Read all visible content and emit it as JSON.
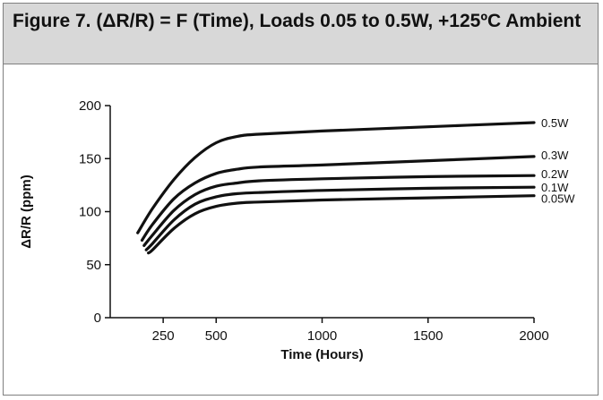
{
  "figure": {
    "title": "Figure 7. (ΔR/R) = F (Time), Loads 0.05 to 0.5W, +125ºC Ambient"
  },
  "chart_data": {
    "type": "line",
    "title": "Figure 7. (ΔR/R) = F (Time), Loads 0.05 to 0.5W, +125ºC Ambient",
    "xlabel": "Time (Hours)",
    "ylabel": "ΔR/R (ppm)",
    "xlim": [
      0,
      2000
    ],
    "ylim": [
      0,
      200
    ],
    "x_ticks": [
      250,
      500,
      1000,
      1500,
      2000
    ],
    "x_tick_labels": [
      "250",
      "500",
      "1000",
      "1500",
      "2000"
    ],
    "y_ticks": [
      0,
      50,
      100,
      150,
      200
    ],
    "y_tick_labels": [
      "0",
      "50",
      "100",
      "150",
      "200"
    ],
    "grid": false,
    "legend": "labels at right end of each line",
    "series": [
      {
        "name": "0.5W",
        "points": [
          [
            130,
            80
          ],
          [
            200,
            103
          ],
          [
            300,
            130
          ],
          [
            400,
            151
          ],
          [
            500,
            165
          ],
          [
            600,
            171
          ],
          [
            700,
            173
          ],
          [
            1000,
            176
          ],
          [
            1500,
            180
          ],
          [
            2000,
            184
          ]
        ]
      },
      {
        "name": "0.3W",
        "points": [
          [
            150,
            73
          ],
          [
            200,
            88
          ],
          [
            300,
            112
          ],
          [
            400,
            127
          ],
          [
            500,
            136
          ],
          [
            600,
            140
          ],
          [
            700,
            142
          ],
          [
            1000,
            144
          ],
          [
            1500,
            148
          ],
          [
            2000,
            152
          ]
        ]
      },
      {
        "name": "0.2W",
        "points": [
          [
            160,
            68
          ],
          [
            200,
            78
          ],
          [
            300,
            101
          ],
          [
            400,
            116
          ],
          [
            500,
            124
          ],
          [
            600,
            127
          ],
          [
            700,
            129
          ],
          [
            1000,
            131
          ],
          [
            1500,
            133
          ],
          [
            2000,
            134
          ]
        ]
      },
      {
        "name": "0.1W",
        "points": [
          [
            170,
            64
          ],
          [
            200,
            70
          ],
          [
            300,
            92
          ],
          [
            400,
            107
          ],
          [
            500,
            114
          ],
          [
            600,
            117
          ],
          [
            700,
            118
          ],
          [
            1000,
            120
          ],
          [
            1500,
            122
          ],
          [
            2000,
            123
          ]
        ]
      },
      {
        "name": "0.05W",
        "points": [
          [
            180,
            61
          ],
          [
            200,
            64
          ],
          [
            300,
            84
          ],
          [
            400,
            98
          ],
          [
            500,
            105
          ],
          [
            600,
            108
          ],
          [
            700,
            109
          ],
          [
            1000,
            111
          ],
          [
            1500,
            113
          ],
          [
            2000,
            115
          ]
        ]
      }
    ]
  }
}
